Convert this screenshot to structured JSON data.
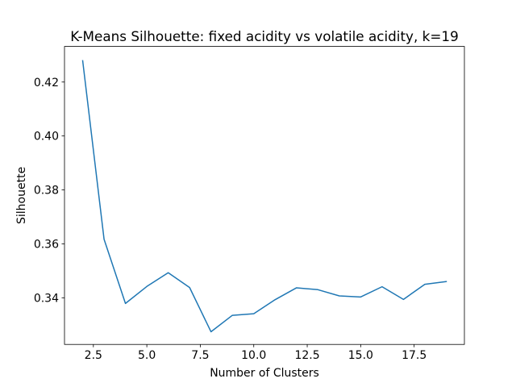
{
  "chart_data": {
    "type": "line",
    "title": "K-Means Silhouette: fixed acidity vs volatile acidity, k=19",
    "xlabel": "Number of Clusters",
    "ylabel": "Silhouette",
    "xlim": [
      1.15,
      19.85
    ],
    "ylim": [
      0.3227,
      0.4332
    ],
    "xticks": [
      2.5,
      5.0,
      7.5,
      10.0,
      12.5,
      15.0,
      17.5
    ],
    "xtick_labels": [
      "2.5",
      "5.0",
      "7.5",
      "10.0",
      "12.5",
      "15.0",
      "17.5"
    ],
    "yticks": [
      0.34,
      0.36,
      0.38,
      0.4,
      0.42
    ],
    "ytick_labels": [
      "0.34",
      "0.36",
      "0.38",
      "0.40",
      "0.42"
    ],
    "grid": false,
    "series": [
      {
        "color": "#1f77b4",
        "x": [
          2,
          3,
          4,
          5,
          6,
          7,
          8,
          9,
          10,
          11,
          12,
          13,
          14,
          15,
          16,
          17,
          18,
          19
        ],
        "values": [
          0.4279,
          0.3617,
          0.3379,
          0.3442,
          0.3493,
          0.3438,
          0.3274,
          0.3335,
          0.3341,
          0.3393,
          0.3437,
          0.343,
          0.3407,
          0.3403,
          0.3441,
          0.3394,
          0.345,
          0.346
        ]
      }
    ]
  }
}
